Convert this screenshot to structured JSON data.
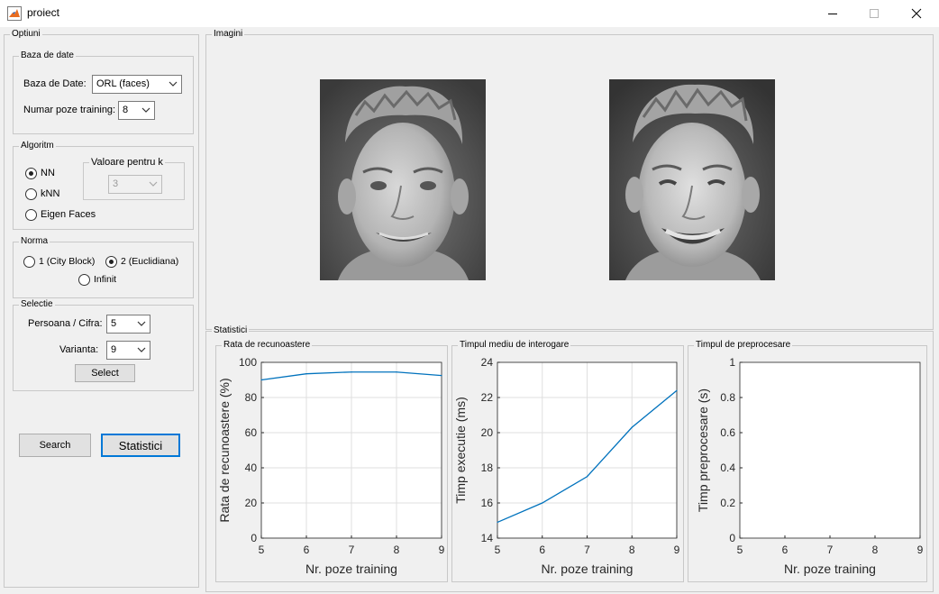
{
  "window": {
    "title": "proiect"
  },
  "options": {
    "title": "Optiuni",
    "database": {
      "title": "Baza de date",
      "db_label": "Baza de Date:",
      "db_value": "ORL (faces)",
      "training_label": "Numar poze training:",
      "training_value": "8"
    },
    "algorithm": {
      "title": "Algoritm",
      "nn": "NN",
      "knn": "kNN",
      "eigen": "Eigen Faces",
      "selected": "NN",
      "k_group_title": "Valoare pentru k",
      "k_value": "3"
    },
    "norm": {
      "title": "Norma",
      "opt1": "1 (City Block)",
      "opt2": "2 (Euclidiana)",
      "opt3": "Infinit",
      "selected": "2 (Euclidiana)"
    },
    "selection": {
      "title": "Selectie",
      "person_label": "Persoana / Cifra:",
      "person_value": "5",
      "variant_label": "Varianta:",
      "variant_value": "9",
      "select_button": "Select"
    },
    "search_button": "Search",
    "stats_button": "Statistici"
  },
  "images": {
    "title": "Imagini"
  },
  "stats": {
    "title": "Statistici",
    "panels": [
      "Rata de recunoastere",
      "Timpul mediu de interogare",
      "Timpul de preprocesare"
    ]
  },
  "chart_data": [
    {
      "type": "line",
      "title": "",
      "xlabel": "Nr. poze training",
      "ylabel": "Rata de recunoastere (%)",
      "x": [
        5,
        6,
        7,
        8,
        9
      ],
      "y": [
        90,
        93.5,
        94.5,
        94.5,
        92.5
      ],
      "xlim": [
        5,
        9
      ],
      "ylim": [
        0,
        100
      ],
      "xticks": [
        5,
        6,
        7,
        8,
        9
      ],
      "yticks": [
        0,
        20,
        40,
        60,
        80,
        100
      ],
      "grid": true,
      "color": "#0072bd"
    },
    {
      "type": "line",
      "title": "",
      "xlabel": "Nr. poze training",
      "ylabel": "Timp executie (ms)",
      "x": [
        5,
        6,
        7,
        8,
        9
      ],
      "y": [
        14.9,
        16,
        17.5,
        20.3,
        22.4
      ],
      "xlim": [
        5,
        9
      ],
      "ylim": [
        14,
        24
      ],
      "xticks": [
        5,
        6,
        7,
        8,
        9
      ],
      "yticks": [
        14,
        16,
        18,
        20,
        22,
        24
      ],
      "grid": true,
      "color": "#0072bd"
    },
    {
      "type": "line",
      "title": "",
      "xlabel": "Nr. poze training",
      "ylabel": "Timp preprocesare (s)",
      "x": [],
      "y": [],
      "xlim": [
        5,
        9
      ],
      "ylim": [
        0,
        1
      ],
      "xticks": [
        5,
        6,
        7,
        8,
        9
      ],
      "yticks": [
        0,
        0.2,
        0.4,
        0.6,
        0.8,
        1
      ],
      "grid": false,
      "color": "#0072bd"
    }
  ]
}
